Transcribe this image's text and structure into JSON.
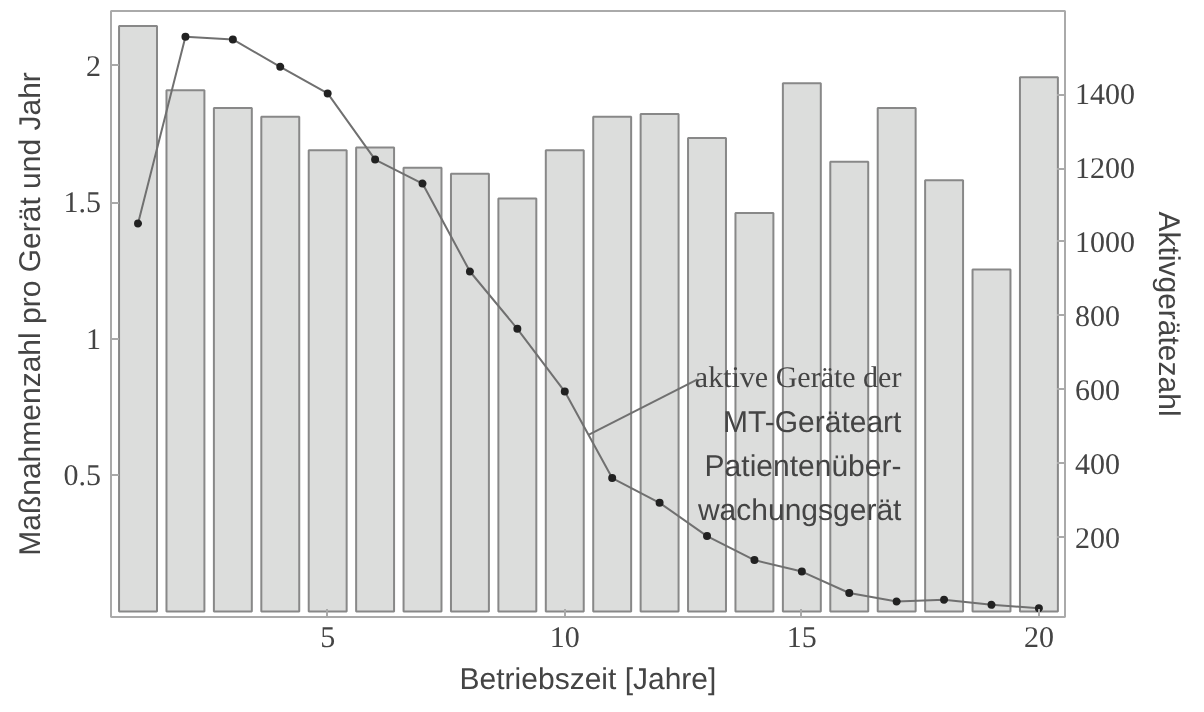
{
  "chart_data": {
    "type": "bar",
    "xlabel": "Betriebszeit [Jahre]",
    "ylabel": "Maßnahmenzahl pro Gerät und Jahr",
    "y2label": "Aktivgerätezahl",
    "x": [
      1,
      2,
      3,
      4,
      5,
      6,
      7,
      8,
      9,
      10,
      11,
      12,
      13,
      14,
      15,
      16,
      17,
      18,
      19,
      20
    ],
    "xlim": [
      0.43,
      20.55
    ],
    "xticks": [
      5,
      10,
      15,
      20
    ],
    "ylim": [
      -0.02,
      2.2
    ],
    "yticks": [
      0.5,
      1,
      1.5,
      2
    ],
    "y2lim": [
      -15,
      1625
    ],
    "y2ticks": [
      200,
      400,
      600,
      800,
      1000,
      1200,
      1400
    ],
    "grid": false,
    "series": [
      {
        "color": "#dcdddc",
        "values": [
          2.145,
          1.91,
          1.845,
          1.813,
          1.69,
          1.7,
          1.626,
          1.604,
          1.513,
          1.69,
          1.813,
          1.823,
          1.735,
          1.46,
          1.935,
          1.648,
          1.845,
          1.58,
          1.253,
          1.957
        ]
      },
      {
        "type": "line",
        "name": "aktive Geräte der\nMT-Geräteart\nPatientenüber-\nwachungsgerät",
        "axis": "y2",
        "color": "#707070",
        "marker": "circle",
        "line_style": "solid",
        "values": [
          1050,
          1555,
          1548,
          1474,
          1402,
          1223,
          1158,
          920,
          765,
          595,
          361,
          294,
          204,
          139,
          108,
          50,
          27,
          32,
          18,
          9
        ]
      }
    ]
  }
}
